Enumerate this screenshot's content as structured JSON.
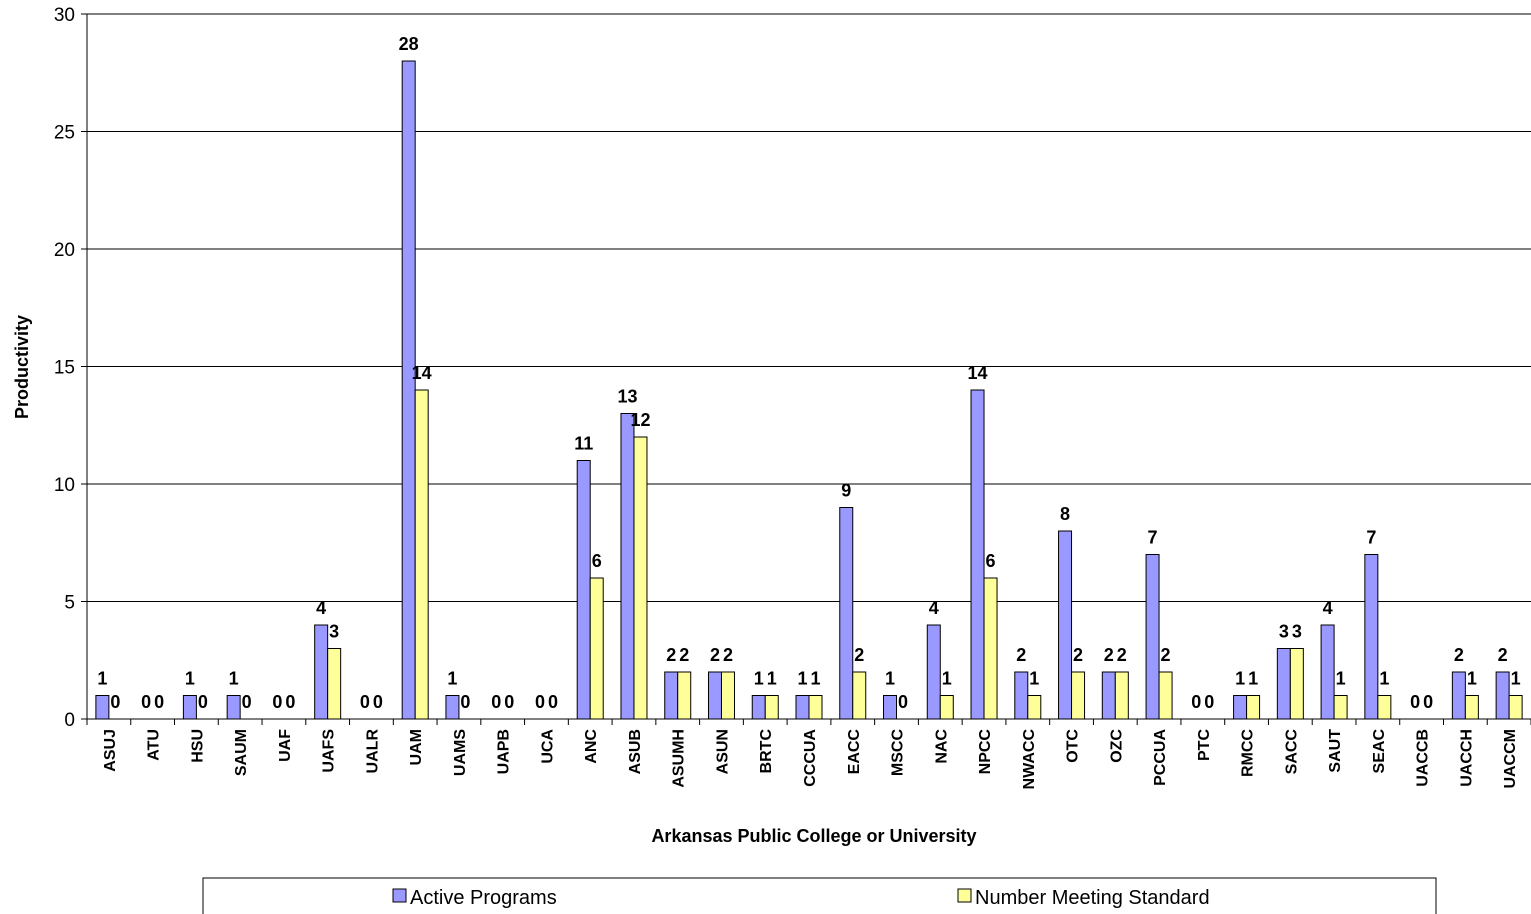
{
  "chart_data": {
    "type": "bar",
    "title": "",
    "xlabel": "Arkansas Public College or University",
    "ylabel": "Productivity",
    "ylim": [
      0,
      30
    ],
    "yticks": [
      0,
      5,
      10,
      15,
      20,
      25,
      30
    ],
    "grid": true,
    "legend_position": "bottom",
    "categories": [
      "ASUJ",
      "ATU",
      "HSU",
      "SAUM",
      "UAF",
      "UAFS",
      "UALR",
      "UAM",
      "UAMS",
      "UAPB",
      "UCA",
      "ANC",
      "ASUB",
      "ASUMH",
      "ASUN",
      "BRTC",
      "CCCUA",
      "EACC",
      "MSCC",
      "NAC",
      "NPCC",
      "NWACC",
      "OTC",
      "OZC",
      "PCCUA",
      "PTC",
      "RMCC",
      "SACC",
      "SAUT",
      "SEAC",
      "UACCB",
      "UACCH",
      "UACCM"
    ],
    "series": [
      {
        "name": "Active Programs",
        "color": "#9999ff",
        "values": [
          1,
          0,
          1,
          1,
          0,
          4,
          0,
          28,
          1,
          0,
          0,
          11,
          13,
          2,
          2,
          1,
          1,
          9,
          1,
          4,
          14,
          2,
          8,
          2,
          7,
          0,
          1,
          3,
          4,
          7,
          0,
          2,
          2
        ]
      },
      {
        "name": "Number Meeting Standard",
        "color": "#ffff99",
        "values": [
          0,
          0,
          0,
          0,
          0,
          3,
          0,
          14,
          0,
          0,
          0,
          6,
          12,
          2,
          2,
          1,
          1,
          2,
          0,
          1,
          6,
          1,
          2,
          2,
          2,
          0,
          1,
          3,
          1,
          1,
          0,
          1,
          1
        ]
      }
    ]
  }
}
